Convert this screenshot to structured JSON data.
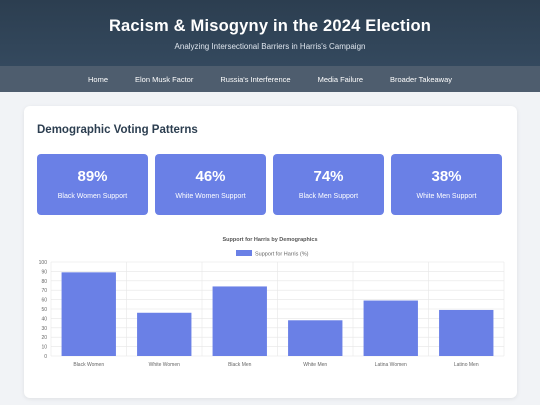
{
  "header": {
    "title": "Racism & Misogyny in the 2024 Election",
    "subtitle": "Analyzing Intersectional Barriers in Harris's Campaign"
  },
  "nav": {
    "items": [
      "Home",
      "Elon Musk Factor",
      "Russia's Interference",
      "Media Failure",
      "Broader Takeaway"
    ]
  },
  "section": {
    "title": "Demographic Voting Patterns",
    "stats": [
      {
        "value": "89%",
        "label": "Black Women Support"
      },
      {
        "value": "46%",
        "label": "White Women Support"
      },
      {
        "value": "74%",
        "label": "Black Men Support"
      },
      {
        "value": "38%",
        "label": "White Men Support"
      }
    ]
  },
  "colors": {
    "bar": "#6a80e6",
    "header": "#2c3e50",
    "nav": "#4e5d6e"
  },
  "chart_data": {
    "type": "bar",
    "title": "Support for Harris by Demographics",
    "categories": [
      "Black Women",
      "White Women",
      "Black Men",
      "White Men",
      "Latina Women",
      "Latino Men"
    ],
    "series": [
      {
        "name": "Support for Harris (%)",
        "values": [
          89,
          46,
          74,
          38,
          59,
          49
        ]
      }
    ],
    "ylim": [
      0,
      100
    ],
    "yticks": [
      0,
      10,
      20,
      30,
      40,
      50,
      60,
      70,
      80,
      90,
      100
    ],
    "grid": true,
    "legend": "top-center"
  }
}
